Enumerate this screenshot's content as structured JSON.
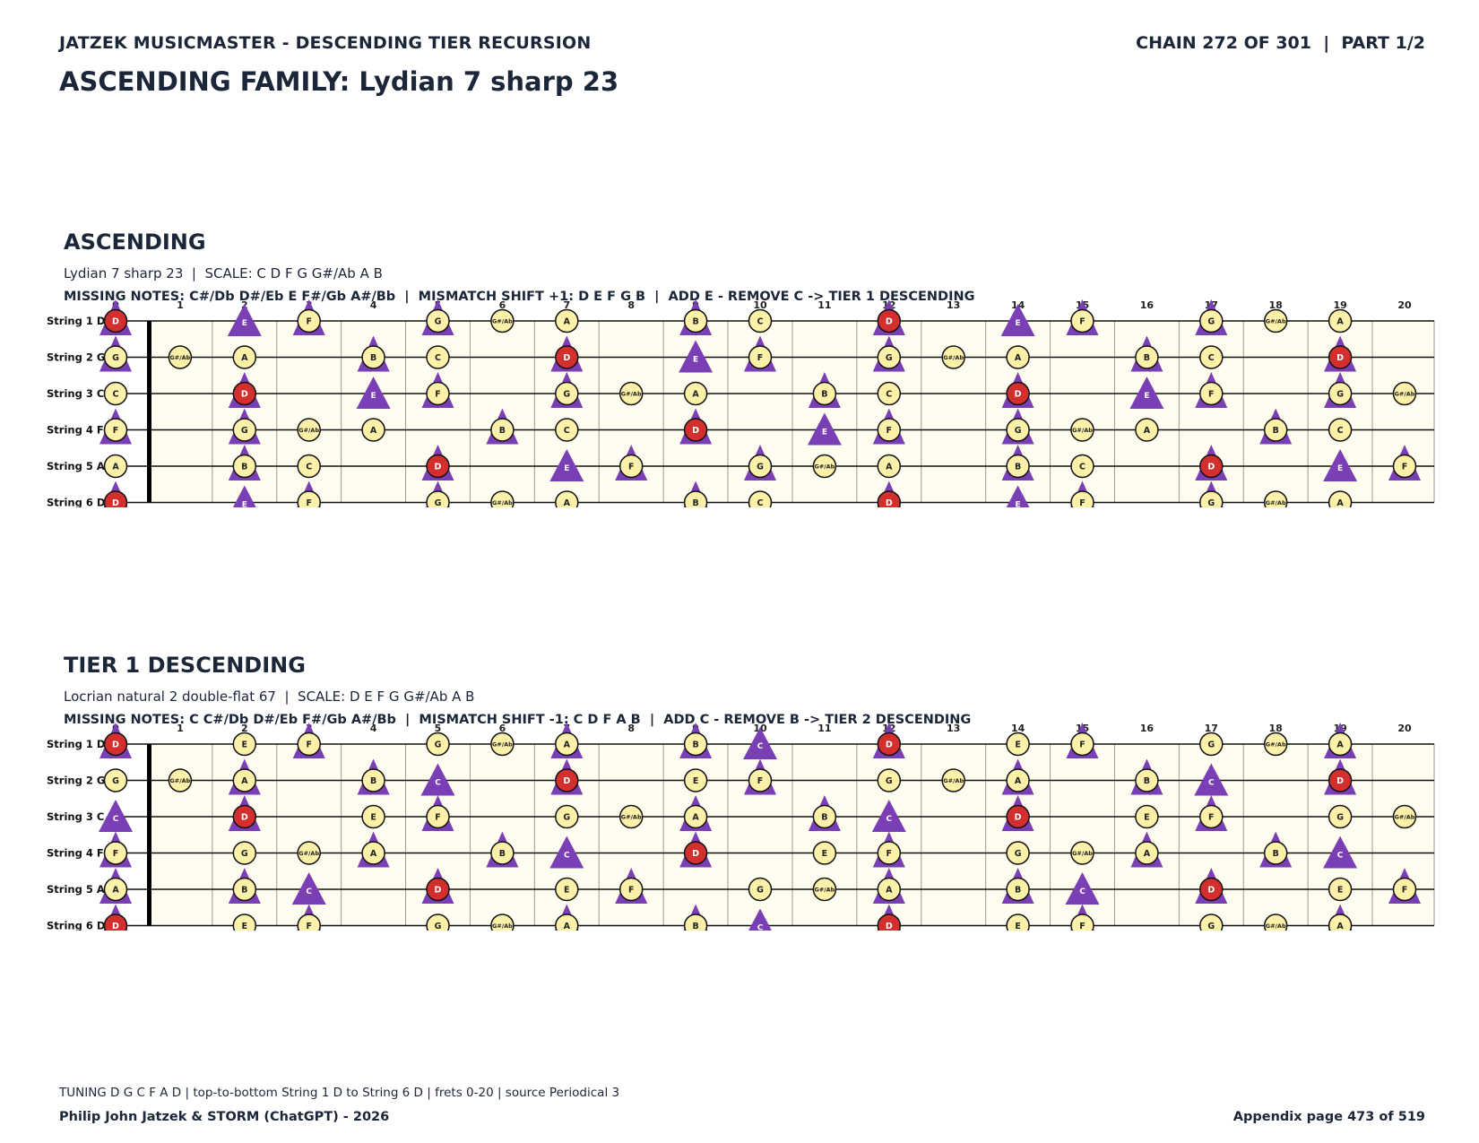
{
  "header": {
    "left": "JATZEK MUSICMASTER - DESCENDING TIER RECURSION",
    "right": "CHAIN 272 OF 301  |  PART 1/2",
    "title": "ASCENDING FAMILY: Lydian 7 sharp 23"
  },
  "fretboard": {
    "strings": [
      "String 1 D",
      "String 2 G",
      "String 3 C",
      "String 4 F",
      "String 5 A",
      "String 6 D"
    ],
    "open_notes": [
      "D",
      "G",
      "C",
      "F",
      "A",
      "D"
    ],
    "fret_labels": [
      "0",
      "1",
      "2",
      "3",
      "4",
      "5",
      "6",
      "7",
      "8",
      "9",
      "10",
      "11",
      "12",
      "13",
      "14",
      "15",
      "16",
      "17",
      "18",
      "19",
      "20"
    ],
    "chromatic": [
      "C",
      "C#/Db",
      "D",
      "D#/Eb",
      "E",
      "F",
      "F#/Gb",
      "G",
      "G#/Ab",
      "A",
      "A#/Bb",
      "B"
    ],
    "note_labels": {
      "C#/Db": "C#/Db",
      "D#/Eb": "D#/Eb",
      "F#/Gb": "F#/Gb",
      "G#/Ab": "G#/Ab",
      "A#/Bb": "A#/Bb"
    },
    "colors": {
      "note_fill": "#fdf0a8",
      "root_fill": "#d32f2f",
      "triangle": "#7b3fb5",
      "board_bg": "#fffdf0",
      "ink": "#1b2638"
    }
  },
  "sections": [
    {
      "heading": "ASCENDING",
      "scale_line": "Lydian 7 sharp 23  |  SCALE: C D F G G#/Ab A B",
      "missing_line": "MISSING NOTES: C#/Db D#/Eb E F#/Gb A#/Bb  |  MISMATCH SHIFT +1: D E F G B  |  ADD E - REMOVE C -> TIER 1 DESCENDING",
      "circle_notes": [
        "C",
        "D",
        "F",
        "G",
        "G#/Ab",
        "A",
        "B"
      ],
      "triangle_notes": [
        "D",
        "E",
        "F",
        "G",
        "B"
      ],
      "root": "D"
    },
    {
      "heading": "TIER 1 DESCENDING",
      "scale_line": "Locrian natural 2 double-flat 67  |  SCALE: D E F G G#/Ab A B",
      "missing_line": "MISSING NOTES: C C#/Db D#/Eb F#/Gb A#/Bb  |  MISMATCH SHIFT -1: C D F A B  |  ADD C - REMOVE B -> TIER 2 DESCENDING",
      "circle_notes": [
        "D",
        "E",
        "F",
        "G",
        "G#/Ab",
        "A",
        "B"
      ],
      "triangle_notes": [
        "C",
        "D",
        "F",
        "A",
        "B"
      ],
      "root": "D"
    }
  ],
  "footer": {
    "note": "TUNING D G C F A D | top-to-bottom String 1 D to String 6 D | frets 0-20 | source Periodical 3",
    "author": "Philip John Jatzek & STORM (ChatGPT) - 2026",
    "page": "Appendix page 473 of 519"
  }
}
